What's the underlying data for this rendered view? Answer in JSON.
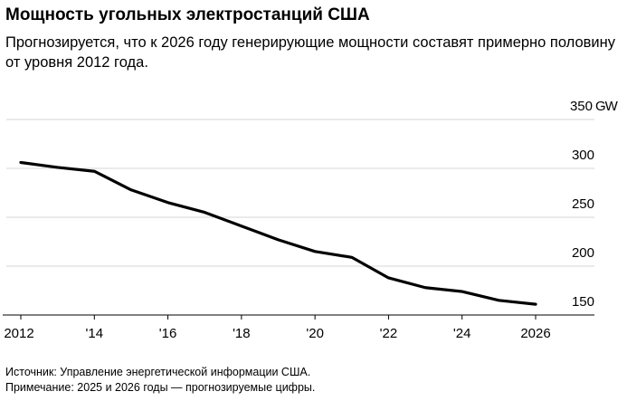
{
  "title": "Мощность угольных электростанций США",
  "subtitle": "Прогнозируется, что к 2026 году генерирующие мощности составят примерно половину от уровня 2012 года.",
  "footer": {
    "source": "Источник: Управление энергетической информации США.",
    "note": "Примечание: 2025 и 2026 годы — прогнозируемые цифры."
  },
  "chart_data": {
    "type": "line",
    "title": "Мощность угольных электростанций США",
    "x": [
      2012,
      2013,
      2014,
      2015,
      2016,
      2017,
      2018,
      2019,
      2020,
      2021,
      2022,
      2023,
      2024,
      2025,
      2026
    ],
    "series": [
      {
        "name": "Мощность, GW",
        "values": [
          306,
          301,
          297,
          278,
          265,
          255,
          241,
          227,
          215,
          209,
          188,
          178,
          174,
          165,
          161
        ]
      }
    ],
    "ylim": [
      150,
      350
    ],
    "yticks": [
      150,
      200,
      250,
      300,
      350
    ],
    "ytick_labels": [
      "150",
      "200",
      "250",
      "300",
      "350"
    ],
    "yunit": "GW",
    "xticks": [
      2012,
      2014,
      2016,
      2018,
      2020,
      2022,
      2024,
      2026
    ],
    "xtick_labels": [
      "2012",
      "'14",
      "'16",
      "'18",
      "'20",
      "'22",
      "'24",
      "2026"
    ],
    "grid": true,
    "line_color": "#000000",
    "grid_color": "#dddddd"
  }
}
